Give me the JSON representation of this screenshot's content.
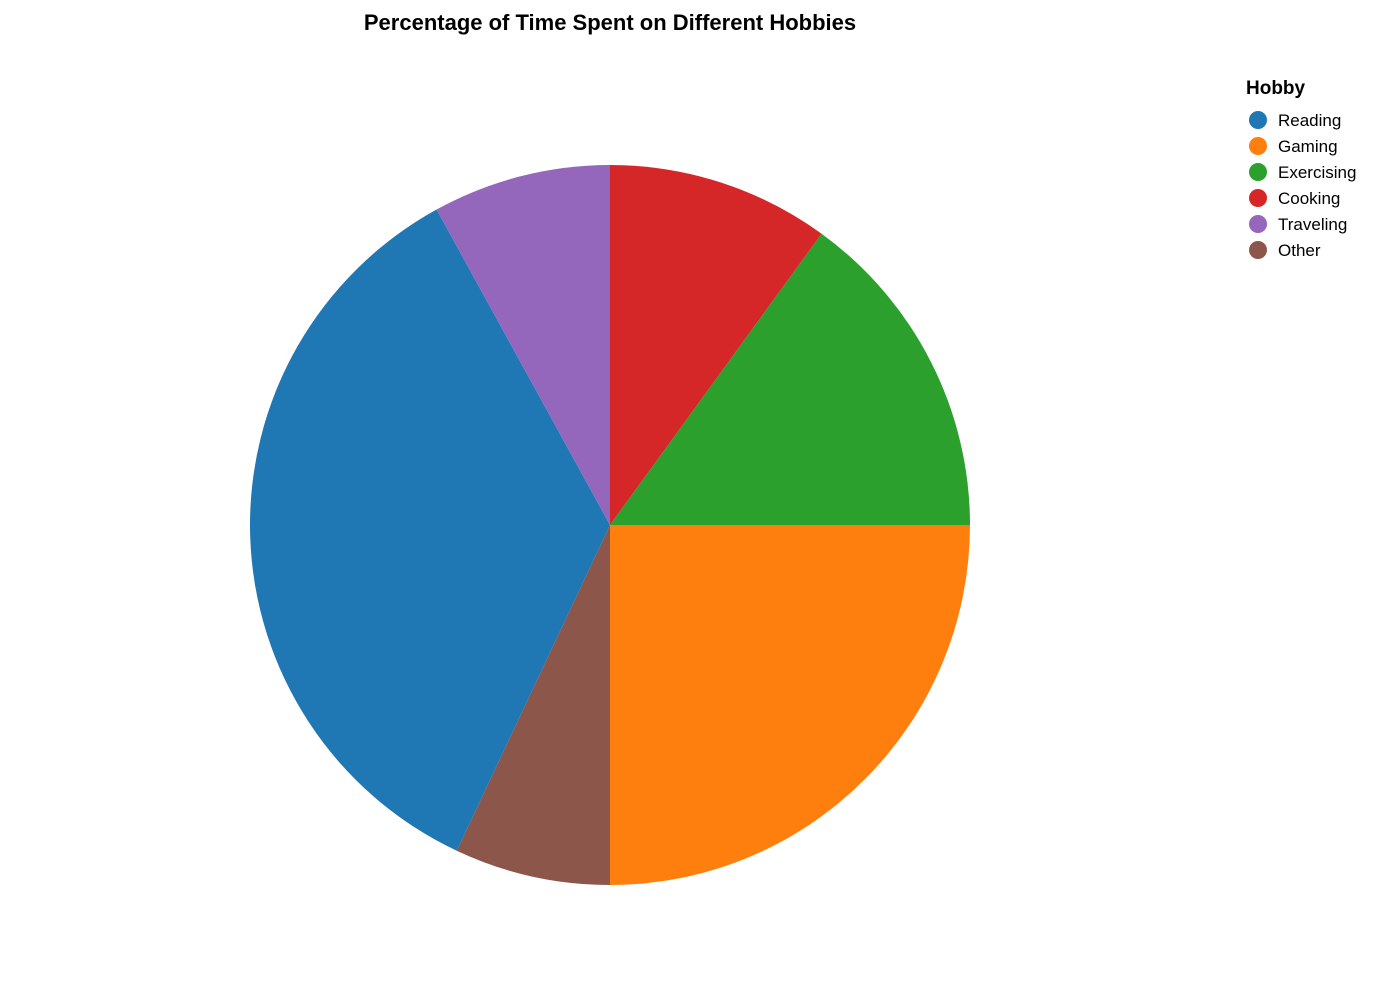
{
  "chart_data": {
    "type": "pie",
    "title": "Percentage of Time Spent on Different Hobbies",
    "legend_title": "Hobby",
    "legend_position": "top-right",
    "categories": [
      "Reading",
      "Gaming",
      "Exercising",
      "Cooking",
      "Traveling",
      "Other"
    ],
    "values": [
      35,
      25,
      15,
      10,
      8,
      7
    ],
    "colors": [
      "#1f77b4",
      "#ff7f0e",
      "#2ca02c",
      "#d62728",
      "#9467bd",
      "#8c564b"
    ]
  }
}
